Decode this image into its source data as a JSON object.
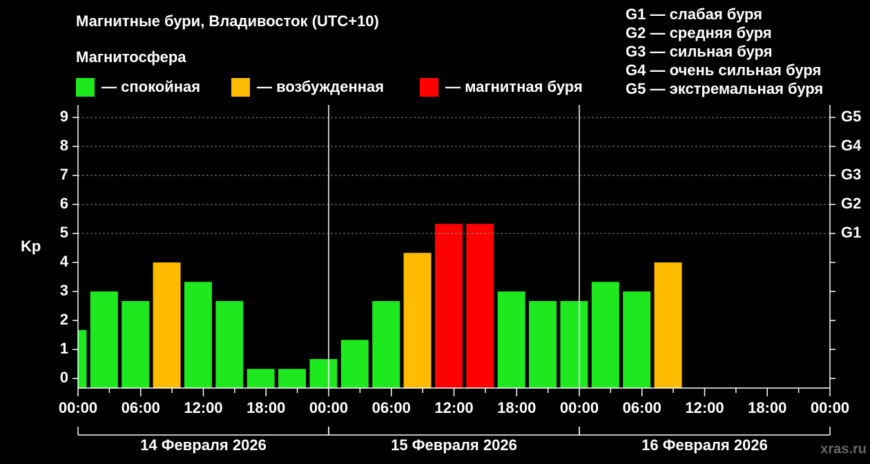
{
  "chart_data": {
    "type": "bar",
    "title": "Магнитные бури, Владивосток (UTC+10)",
    "subtitle": "Магнитосфера",
    "legend": [
      {
        "label": "— спокойная",
        "color": "#1ee81e"
      },
      {
        "label": "— возбужденная",
        "color": "#ffbb00"
      },
      {
        "label": "— магнитная буря",
        "color": "#ff0000"
      }
    ],
    "storm_levels": [
      "G1 — слабая буря",
      "G2 — средняя буря",
      "G3 — сильная буря",
      "G4 — очень сильная буря",
      "G5 — экстремальная буря"
    ],
    "ylabel": "Kp",
    "x": [
      -0.5,
      2.5,
      5.5,
      8.5,
      11.5,
      14.5,
      17.5,
      20.5,
      23.5,
      26.5,
      29.5,
      32.5,
      35.5,
      38.5,
      41.5,
      44.5,
      47.5,
      50.5,
      53.5,
      56.5
    ],
    "values": [
      1.67,
      3,
      2.67,
      4,
      3.33,
      2.67,
      0.33,
      0.33,
      0.67,
      1.33,
      2.67,
      4.33,
      5.33,
      5.33,
      3,
      2.67,
      2.67,
      3.33,
      3,
      4
    ],
    "colors": [
      "#1ee81e",
      "#1ee81e",
      "#1ee81e",
      "#ffbb00",
      "#1ee81e",
      "#1ee81e",
      "#1ee81e",
      "#1ee81e",
      "#1ee81e",
      "#1ee81e",
      "#1ee81e",
      "#ffbb00",
      "#ff0000",
      "#ff0000",
      "#1ee81e",
      "#1ee81e",
      "#1ee81e",
      "#1ee81e",
      "#1ee81e",
      "#ffbb00"
    ],
    "xlim": [
      0,
      72
    ],
    "xticks": [
      {
        "value": 0,
        "label": "00:00"
      },
      {
        "value": 6,
        "label": "06:00"
      },
      {
        "value": 12,
        "label": "12:00"
      },
      {
        "value": 18,
        "label": "18:00"
      },
      {
        "value": 24,
        "label": "00:00"
      },
      {
        "value": 30,
        "label": "06:00"
      },
      {
        "value": 36,
        "label": "12:00"
      },
      {
        "value": 42,
        "label": "18:00"
      },
      {
        "value": 48,
        "label": "00:00"
      },
      {
        "value": 54,
        "label": "06:00"
      },
      {
        "value": 60,
        "label": "12:00"
      },
      {
        "value": 66,
        "label": "18:00"
      },
      {
        "value": 72,
        "label": "00:00"
      }
    ],
    "xminorticks": [
      3,
      9,
      15,
      21,
      27,
      33,
      39,
      45,
      51,
      57,
      63,
      69
    ],
    "days": [
      {
        "label": "14 Февраля 2026",
        "start": 0,
        "end": 24
      },
      {
        "label": "15 Февраля 2026",
        "start": 24,
        "end": 48
      },
      {
        "label": "16 Февраля 2026",
        "start": 48,
        "end": 72
      }
    ],
    "ylim": [
      -0.33,
      9.43
    ],
    "yticks": [
      0,
      1,
      2,
      3,
      4,
      5,
      6,
      7,
      8,
      9
    ],
    "y2lim": [
      -0.33,
      9.43
    ],
    "y2ticks": [
      {
        "value": 5,
        "label": "G1"
      },
      {
        "value": 6,
        "label": "G2"
      },
      {
        "value": 7,
        "label": "G3"
      },
      {
        "value": 8,
        "label": "G4"
      },
      {
        "value": 9,
        "label": "G5"
      }
    ],
    "grid": true,
    "watermark": "xras.ru"
  }
}
